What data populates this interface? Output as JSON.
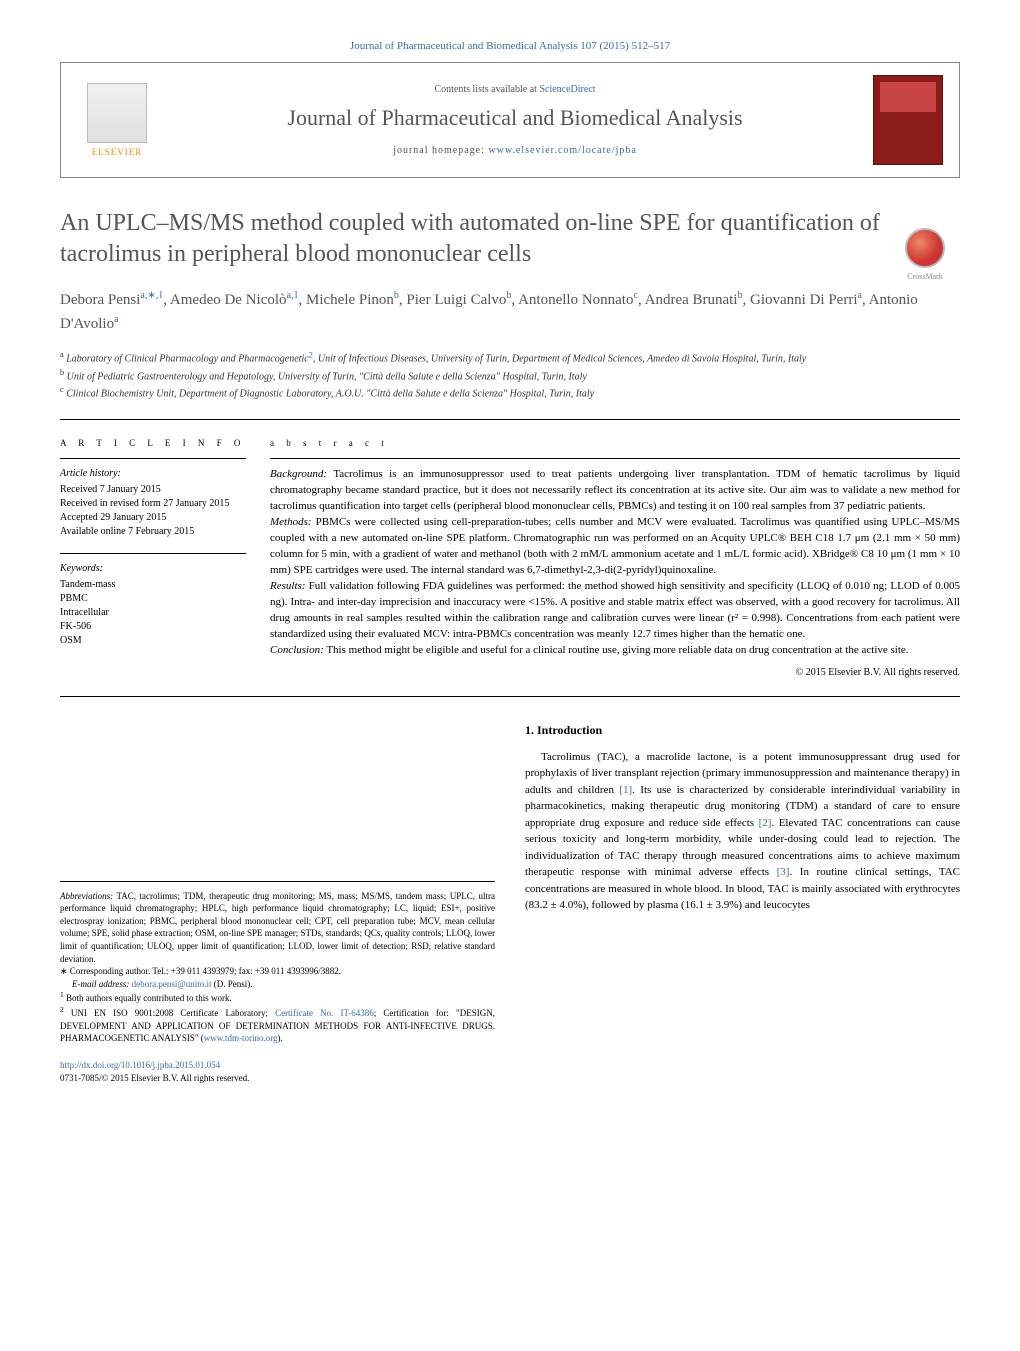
{
  "top_header": "Journal of Pharmaceutical and Biomedical Analysis 107 (2015) 512–517",
  "journal_box": {
    "contents_prefix": "Contents lists available at ",
    "contents_link": "ScienceDirect",
    "title": "Journal of Pharmaceutical and Biomedical Analysis",
    "homepage_prefix": "journal homepage: ",
    "homepage_link": "www.elsevier.com/locate/jpba",
    "elsevier": "ELSEVIER"
  },
  "crossmark": "CrossMark",
  "article": {
    "title": "An UPLC–MS/MS method coupled with automated on-line SPE for quantification of tacrolimus in peripheral blood mononuclear cells",
    "authors_html": "Debora Pensi<sup>a,∗,1</sup>, Amedeo De Nicolò<sup>a,1</sup>, Michele Pinon<sup>b</sup>, Pier Luigi Calvo<sup>b</sup>, Antonello Nonnato<sup>c</sup>, Andrea Brunati<sup>b</sup>, Giovanni Di Perri<sup>a</sup>, Antonio D'Avolio<sup>a</sup>",
    "affiliations": {
      "a_prefix": "a",
      "a": " Laboratory of Clinical Pharmacology and Pharmacogenetic",
      "a_link": "2",
      "a_suffix": ", Unit of Infectious Diseases, University of Turin, Department of Medical Sciences, Amedeo di Savoia Hospital, Turin, Italy",
      "b_prefix": "b",
      "b": " Unit of Pediatric Gastroenterology and Hepatology, University of Turin, \"Città della Salute e della Scienza\" Hospital, Turin, Italy",
      "c_prefix": "c",
      "c": " Clinical Biochemistry Unit, Department of Diagnostic Laboratory, A.O.U. \"Città della Salute e della Scienza\" Hospital, Turin, Italy"
    }
  },
  "article_info": {
    "heading": "a r t i c l e   i n f o",
    "history_label": "Article history:",
    "history": [
      "Received 7 January 2015",
      "Received in revised form 27 January 2015",
      "Accepted 29 January 2015",
      "Available online 7 February 2015"
    ],
    "keywords_label": "Keywords:",
    "keywords": [
      "Tandem-mass",
      "PBMC",
      "Intracellular",
      "FK-506",
      "OSM"
    ]
  },
  "abstract": {
    "heading": "a b s t r a c t",
    "background_label": "Background:",
    "background": " Tacrolimus is an immunosuppressor used to treat patients undergoing liver transplantation. TDM of hematic tacrolimus by liquid chromatography became standard practice, but it does not necessarily reflect its concentration at its active site. Our aim was to validate a new method for tacrolimus quantification into target cells (peripheral blood mononuclear cells, PBMCs) and testing it on 100 real samples from 37 pediatric patients.",
    "methods_label": "Methods:",
    "methods": " PBMCs were collected using cell-preparation-tubes; cells number and MCV were evaluated. Tacrolimus was quantified using UPLC–MS/MS coupled with a new automated on-line SPE platform. Chromatographic run was performed on an Acquity UPLC® BEH C18 1.7 μm (2.1 mm × 50 mm) column for 5 min, with a gradient of water and methanol (both with 2 mM/L ammonium acetate and 1 mL/L formic acid). XBridge® C8 10 μm (1 mm × 10 mm) SPE cartridges were used. The internal standard was 6,7-dimethyl-2,3-di(2-pyridyl)quinoxaline.",
    "results_label": "Results:",
    "results": " Full validation following FDA guidelines was performed: the method showed high sensitivity and specificity (LLOQ of 0.010 ng; LLOD of 0.005 ng). Intra- and inter-day imprecision and inaccuracy were <15%. A positive and stable matrix effect was observed, with a good recovery for tacrolimus. All drug amounts in real samples resulted within the calibration range and calibration curves were linear (r² = 0.998). Concentrations from each patient were standardized using their evaluated MCV: intra-PBMCs concentration was meanly 12.7 times higher than the hematic one.",
    "conclusion_label": "Conclusion:",
    "conclusion": " This method might be eligible and useful for a clinical routine use, giving more reliable data on drug concentration at the active site.",
    "copyright": "© 2015 Elsevier B.V. All rights reserved."
  },
  "footnotes": {
    "abbrev_label": "Abbreviations:",
    "abbrev": " TAC, tacrolimus; TDM, therapeutic drug monitoring; MS, mass; MS/MS, tandem mass; UPLC, ultra performance liquid chromatography; HPLC, high performance liquid chromatography; LC, liquid; ESI+, positive electrospray ionization; PBMC, peripheral blood mononuclear cell; CPT, cell preparation tube; MCV, mean cellular volume; SPE, solid phase extraction; OSM, on-line SPE manager; STDs, standards; QCs, quality controls; LLOQ, lower limit of quantification; ULOQ, upper limit of quantification; LLOD, lower limit of detection; RSD, relative standard deviation.",
    "corr_label": "∗",
    "corr": " Corresponding author. Tel.: +39 011 4393979; fax: +39 011 4393996/3882.",
    "email_label": "E-mail address: ",
    "email": "debora.pensi@unito.it",
    "email_suffix": " (D. Pensi).",
    "note1_label": "1",
    "note1": " Both authors equally contributed to this work.",
    "note2_label": "2",
    "note2_a": " UNI EN ISO 9001:2008 Certificate Laboratory; ",
    "note2_link1": "Certificate No. IT-64386",
    "note2_b": "; Certification for: \"DESIGN, DEVELOPMENT AND APPLICATION OF DETERMINATION METHODS FOR ANTI-INFECTIVE DRUGS. PHARMACOGENETIC ANALYSIS\" (",
    "note2_link2": "www.tdm-torino.org",
    "note2_c": ")."
  },
  "doi": {
    "url": "http://dx.doi.org/10.1016/j.jpba.2015.01.054",
    "issn_line": "0731-7085/© 2015 Elsevier B.V. All rights reserved."
  },
  "intro": {
    "heading": "1. Introduction",
    "p1_a": "Tacrolimus (TAC), a macrolide lactone, is a potent immunosuppressant drug used for prophylaxis of liver transplant rejection (primary immunosuppression and maintenance therapy) in adults and children ",
    "ref1": "[1]",
    "p1_b": ". Its use is characterized by considerable interindividual variability in pharmacokinetics, making therapeutic drug monitoring (TDM) a standard of care to ensure appropriate drug exposure and reduce side effects ",
    "ref2": "[2]",
    "p1_c": ". Elevated TAC concentrations can cause serious toxicity and long-term morbidity, while under-dosing could lead to rejection. The individualization of TAC therapy through measured concentrations aims to achieve maximum therapeutic response with minimal adverse effects ",
    "ref3": "[3]",
    "p1_d": ". In routine clinical settings, TAC concentrations are measured in whole blood. In blood, TAC is mainly associated with erythrocytes (83.2 ± 4.0%), followed by plasma (16.1 ± 3.9%) and leucocytes"
  },
  "colors": {
    "link": "#3b6ba5",
    "heading_grey": "#555555",
    "elsevier_orange": "#ff8c00",
    "cover_red": "#8b1a1a"
  }
}
